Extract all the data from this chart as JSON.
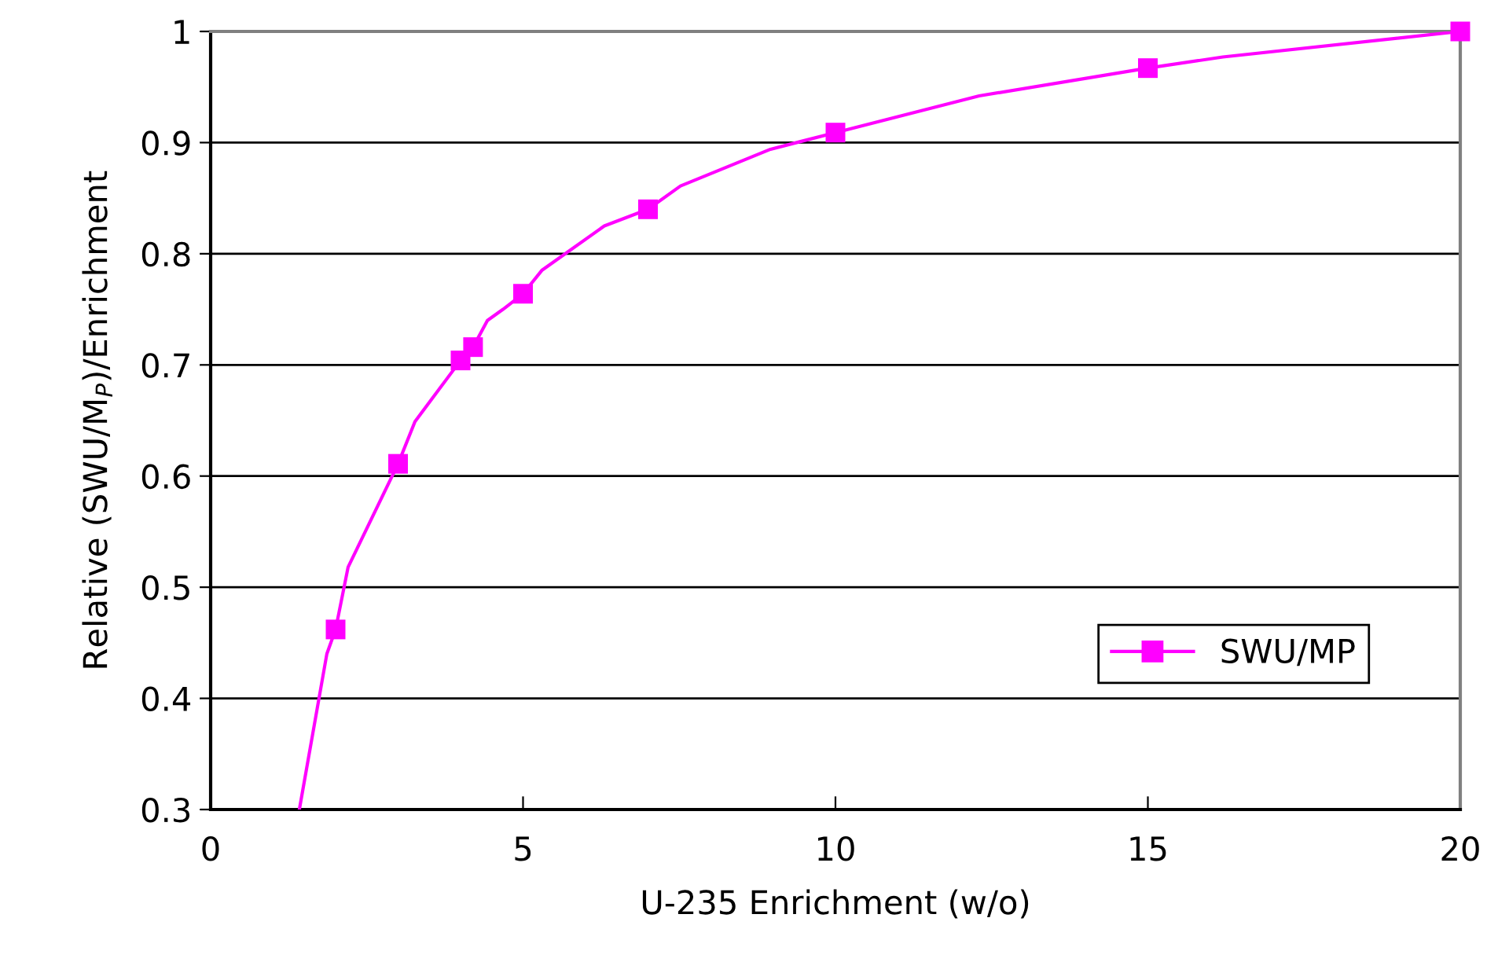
{
  "chart_data": {
    "type": "line",
    "xlabel": "U-235 Enrichment (w/o)",
    "ylabel": "Relative (SWU/M$_{P}$)/Enrichment",
    "xlim": [
      0,
      20
    ],
    "xticks": [
      0,
      5,
      10,
      15,
      20
    ],
    "ylim": [
      0.3,
      1
    ],
    "yticks": [
      0.3,
      0.4,
      0.5,
      0.6,
      0.7,
      0.8,
      0.9,
      1
    ],
    "grid": "y",
    "legend": "right",
    "series": [
      {
        "name": "SWU/MP",
        "color": "#ff00ff",
        "x": [
          1.42,
          1.86,
          2,
          2.2,
          3,
          3.27,
          4,
          4.2,
          4.43,
          4.68,
          5,
          5.3,
          6.3,
          7,
          7.52,
          8.96,
          10,
          12.3,
          15,
          16.2,
          20
        ],
        "values": [
          0.3,
          0.44,
          0.462,
          0.518,
          0.611,
          0.649,
          0.704,
          0.716,
          0.74,
          0.75,
          0.764,
          0.785,
          0.825,
          0.84,
          0.861,
          0.894,
          0.909,
          0.942,
          0.967,
          0.977,
          1.0
        ]
      },
      {
        "type": "scatter",
        "color": "#ff00ff",
        "marker": "square",
        "x": [
          2,
          3,
          4,
          4.2,
          5,
          7,
          10,
          15,
          20
        ],
        "values": [
          0.462,
          0.611,
          0.704,
          0.716,
          0.764,
          0.84,
          0.909,
          0.967,
          1.0
        ]
      }
    ]
  }
}
